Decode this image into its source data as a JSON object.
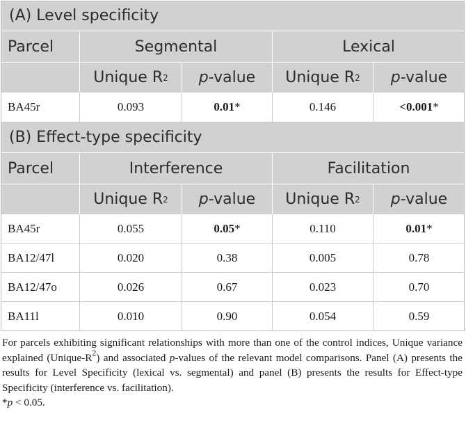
{
  "panelA": {
    "title": "(A) Level specificity",
    "header": {
      "parcel": "Parcel",
      "group1": "Segmental",
      "group2": "Lexical"
    },
    "subheader": {
      "unique": "Unique R",
      "unique_sup": "2",
      "p_prefix": "p",
      "p_suffix": "-value"
    },
    "rows": [
      {
        "parcel": "BA45r",
        "r1": "0.093",
        "p1": "0.01",
        "p1_mark": "*",
        "r2": "0.146",
        "p2": "<0.001",
        "p2_mark": "*"
      }
    ]
  },
  "panelB": {
    "title": "(B) Effect-type specificity",
    "header": {
      "parcel": "Parcel",
      "group1": "Interference",
      "group2": "Facilitation"
    },
    "subheader": {
      "unique": "Unique R",
      "unique_sup": "2",
      "p_prefix": "p",
      "p_suffix": "-value"
    },
    "rows": [
      {
        "parcel": "BA45r",
        "r1": "0.055",
        "p1": "0.05",
        "p1_mark": "*",
        "r2": "0.110",
        "p2": "0.01",
        "p2_mark": "*"
      },
      {
        "parcel": "BA12/47l",
        "r1": "0.020",
        "p1": "0.38",
        "r2": "0.005",
        "p2": "0.78"
      },
      {
        "parcel": "BA12/47o",
        "r1": "0.026",
        "p1": "0.67",
        "r2": "0.023",
        "p2": "0.70"
      },
      {
        "parcel": "BA11l",
        "r1": "0.010",
        "p1": "0.90",
        "r2": "0.054",
        "p2": "0.59"
      }
    ]
  },
  "footnote": {
    "t1": "For parcels exhibiting significant relationships with more than one of the control indices, Unique variance explained (Unique-R",
    "t1_sup": "2",
    "t2": ") and associated ",
    "t2_ital": "p",
    "t3": "-values of the relevant model comparisons. Panel (A) presents the results for Level Specificity (lexical vs. segmental) and panel (B) presents the results for Effect-type Specificity (interference vs. facilitation).",
    "sig_mark": "*",
    "sig_p": "p",
    "sig_rest": " < 0.05."
  }
}
